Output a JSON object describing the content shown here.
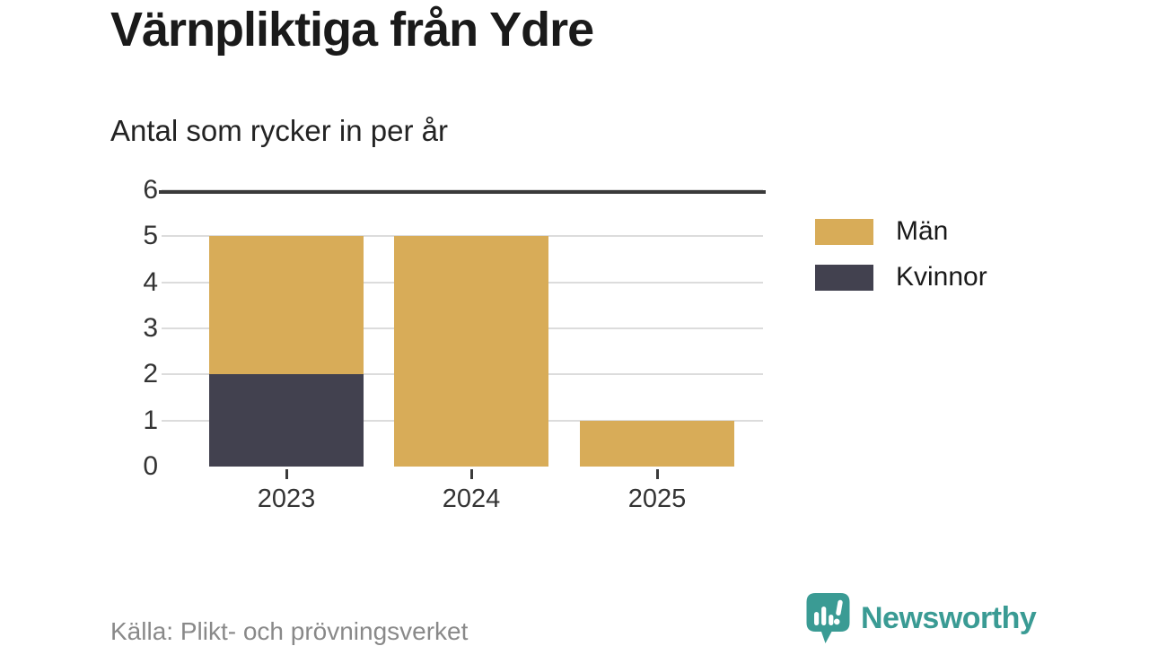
{
  "header": {
    "title": "Värnpliktiga från Ydre",
    "subtitle": "Antal som rycker in per år"
  },
  "chart_data": {
    "type": "bar",
    "stacked": true,
    "title": "Värnpliktiga från Ydre",
    "subtitle": "Antal som rycker in per år",
    "categories": [
      "2023",
      "2024",
      "2025"
    ],
    "series": [
      {
        "name": "Män",
        "color": "#D8AC58",
        "values": [
          3,
          5,
          1
        ]
      },
      {
        "name": "Kvinnor",
        "color": "#42414F",
        "values": [
          2,
          0,
          0
        ]
      }
    ],
    "stack_order_bottom_to_top": [
      "Kvinnor",
      "Män"
    ],
    "totals": [
      5,
      5,
      1
    ],
    "xlabel": "",
    "ylabel": "",
    "ylim": [
      0,
      6
    ],
    "yticks": [
      0,
      1,
      2,
      3,
      4,
      5,
      6
    ],
    "grid": true,
    "legend_position": "right"
  },
  "footer": {
    "source": "Källa: Plikt- och prövningsverket",
    "brand": "Newsworthy"
  },
  "colors": {
    "men": "#D8AC58",
    "women": "#42414F",
    "axis_line": "#3A3A3A",
    "gridline": "#DCDCDC",
    "text": "#1A1A1A",
    "muted_text": "#898989",
    "brand_teal": "#3A9B94"
  }
}
